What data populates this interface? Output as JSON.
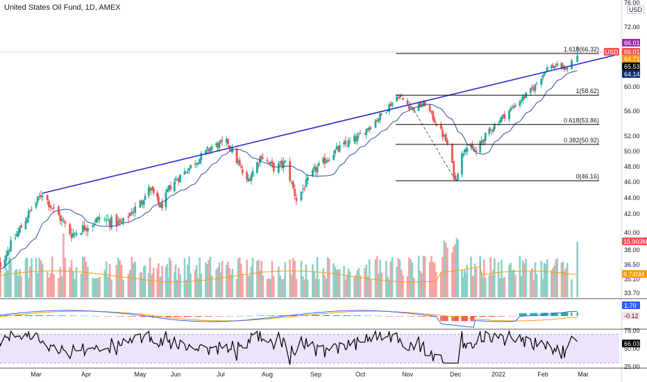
{
  "header": {
    "title": "United States Oil Fund, 1D, AMEX",
    "currency": "USD"
  },
  "colors": {
    "up": "#26a69a",
    "down": "#ef5350",
    "trendline": "#1f2fc8",
    "ma": "#2a4fa0",
    "macd_line": "#2962ff",
    "signal_line": "#ff9800",
    "rsi_line": "#000000",
    "rsi_band": "#ede3fb",
    "price_tag": "#ef5350",
    "dashed_line": "#555555"
  },
  "chart_data": [
    {
      "type": "candlestick",
      "title": "United States Oil Fund, 1D, AMEX",
      "ylim": [
        33.7,
        76.0
      ],
      "y_ticks": [
        "72.00",
        "68.00",
        "60.00",
        "56.00",
        "52.00",
        "50.00",
        "48.00",
        "46.00",
        "44.00",
        "42.00",
        "40.00",
        "38.00",
        "36.50",
        "35.10",
        "33.70"
      ],
      "x_ticks": [
        "Mar",
        "Apr",
        "May",
        "Jun",
        "Jul",
        "Aug",
        "Sep",
        "Oct",
        "Nov",
        "Dec",
        "2022",
        "Feb",
        "Mar"
      ],
      "x_tick_dates": [
        "2021-03-01",
        "2021-04-01",
        "2021-05-03",
        "2021-06-01",
        "2021-07-01",
        "2021-08-02",
        "2021-09-01",
        "2021-10-01",
        "2021-11-01",
        "2021-12-01",
        "2022-01-03",
        "2022-02-01",
        "2022-03-01"
      ],
      "price_keypoints": [
        [
          "2021-02-01",
          35.4
        ],
        [
          "2021-02-22",
          41.5
        ],
        [
          "2021-03-05",
          44.6
        ],
        [
          "2021-03-10",
          43.0
        ],
        [
          "2021-03-23",
          39.8
        ],
        [
          "2021-04-09",
          41.5
        ],
        [
          "2021-04-22",
          40.9
        ],
        [
          "2021-05-11",
          45.2
        ],
        [
          "2021-05-20",
          42.8
        ],
        [
          "2021-05-28",
          45.5
        ],
        [
          "2021-06-25",
          50.6
        ],
        [
          "2021-07-06",
          51.2
        ],
        [
          "2021-07-19",
          46.0
        ],
        [
          "2021-07-29",
          49.5
        ],
        [
          "2021-08-06",
          47.8
        ],
        [
          "2021-08-13",
          48.5
        ],
        [
          "2021-08-20",
          43.8
        ],
        [
          "2021-08-31",
          47.5
        ],
        [
          "2021-09-15",
          50.2
        ],
        [
          "2021-09-30",
          51.9
        ],
        [
          "2021-10-14",
          55.2
        ],
        [
          "2021-10-26",
          58.6
        ],
        [
          "2021-11-04",
          56.4
        ],
        [
          "2021-11-12",
          57.2
        ],
        [
          "2021-11-26",
          50.9
        ],
        [
          "2021-12-01",
          46.2
        ],
        [
          "2021-12-08",
          50.7
        ],
        [
          "2021-12-17",
          49.9
        ],
        [
          "2021-12-23",
          51.8
        ],
        [
          "2022-01-13",
          56.8
        ],
        [
          "2022-01-26",
          59.8
        ],
        [
          "2022-02-04",
          63.7
        ],
        [
          "2022-02-10",
          64.0
        ],
        [
          "2022-02-18",
          63.5
        ],
        [
          "2022-02-22",
          65.6
        ]
      ],
      "series": [
        {
          "name": "SMA"
        }
      ],
      "trendline": {
        "from": [
          "2021-03-05",
          44.6
        ],
        "to": [
          "2022-03-10",
          66.0
        ]
      },
      "dashed_line": {
        "from": [
          "2021-11-02",
          57.5
        ],
        "to": [
          "2021-12-01",
          46.2
        ]
      },
      "fibonacci": [
        {
          "label": "1.618(66.32)",
          "value": 66.32
        },
        {
          "label": "1(58.62)",
          "value": 58.62
        },
        {
          "label": "0.618(53.86)",
          "value": 53.86
        },
        {
          "label": "0.382(50.92)",
          "value": 50.92
        },
        {
          "label": "0(46.16)",
          "value": 46.16
        }
      ],
      "fib_range": [
        "2021-11-01",
        "2022-02-28"
      ],
      "last_candle": {
        "date": "2022-02-25",
        "open": 64.8,
        "high": 67.4,
        "low": 64.6,
        "close": 66.0
      },
      "price_tags": [
        {
          "text": "66.01",
          "bg": "#9c27b0",
          "fg": "#ffffff"
        },
        {
          "text": "66.01",
          "bg": "#ef5350",
          "fg": "#ffffff"
        },
        {
          "text": "USD",
          "bg": "#ef5350",
          "fg": "#ffffff"
        },
        {
          "text": "64.71",
          "bg": "#ff9800",
          "fg": "#ffffff"
        },
        {
          "text": "65.53",
          "bg": "#000000",
          "fg": "#ffffff"
        },
        {
          "text": "64.14",
          "bg": "#0d2a6e",
          "fg": "#ffffff"
        }
      ],
      "volume_tags": [
        {
          "text": "15.903M",
          "bg": "#ef5350",
          "fg": "#ffffff"
        },
        {
          "text": "6.745M",
          "bg": "#ff9800",
          "fg": "#ffffff"
        }
      ]
    },
    {
      "type": "macd",
      "tags": [
        {
          "text": "1.70",
          "bg": "#2962ff",
          "fg": "#ffffff"
        },
        {
          "text": "-0.12",
          "bg": "#fde2e2",
          "fg": "#131722"
        }
      ]
    },
    {
      "type": "rsi",
      "ylim": [
        25,
        75
      ],
      "y_ticks": [
        "75.00",
        "50.00",
        "25.00"
      ],
      "tag": {
        "text": "66.03",
        "bg": "#000000",
        "fg": "#ffffff"
      }
    }
  ]
}
